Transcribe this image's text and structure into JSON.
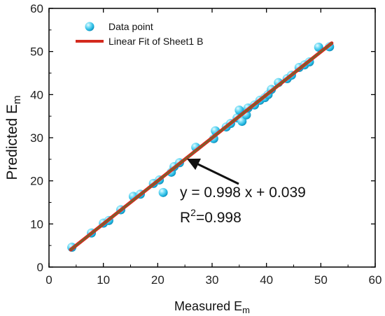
{
  "chart_data": {
    "type": "scatter",
    "xlabel": "Measured E",
    "xlabel_sub": "m",
    "ylabel": "Predicted E",
    "ylabel_sub": "m",
    "xlim": [
      0,
      60
    ],
    "ylim": [
      0,
      60
    ],
    "xticks": [
      0,
      10,
      20,
      30,
      40,
      50,
      60
    ],
    "yticks": [
      0,
      10,
      20,
      30,
      40,
      50,
      60
    ],
    "grid": false,
    "legend_position": "top-left",
    "series": [
      {
        "name": "Data point",
        "kind": "scatter",
        "color": "#2ec4e8",
        "points": [
          [
            4.2,
            4.6
          ],
          [
            7.8,
            7.9
          ],
          [
            10.0,
            10.2
          ],
          [
            11.0,
            10.8
          ],
          [
            13.2,
            13.3
          ],
          [
            15.5,
            16.4
          ],
          [
            16.8,
            16.9
          ],
          [
            19.2,
            19.4
          ],
          [
            20.3,
            20.2
          ],
          [
            21.0,
            17.3
          ],
          [
            22.5,
            22.0
          ],
          [
            23.0,
            23.3
          ],
          [
            24.0,
            24.2
          ],
          [
            27.0,
            27.8
          ],
          [
            30.3,
            29.8
          ],
          [
            30.6,
            31.6
          ],
          [
            32.6,
            32.5
          ],
          [
            33.4,
            33.3
          ],
          [
            34.6,
            34.6
          ],
          [
            35.0,
            36.4
          ],
          [
            35.5,
            33.8
          ],
          [
            36.3,
            35.3
          ],
          [
            36.6,
            36.9
          ],
          [
            37.8,
            37.6
          ],
          [
            38.8,
            38.7
          ],
          [
            39.7,
            39.3
          ],
          [
            40.3,
            40.0
          ],
          [
            40.9,
            41.2
          ],
          [
            42.2,
            42.8
          ],
          [
            43.8,
            43.7
          ],
          [
            44.6,
            44.5
          ],
          [
            46.0,
            46.3
          ],
          [
            47.0,
            46.9
          ],
          [
            47.9,
            47.6
          ],
          [
            49.6,
            51.0
          ],
          [
            51.6,
            51.1
          ]
        ]
      },
      {
        "name": "Linear Fit of Sheet1 B",
        "kind": "line",
        "color": "#d42a1e",
        "slope": 0.998,
        "intercept": 0.039,
        "x_range": [
          4,
          52
        ]
      }
    ],
    "annotation": {
      "equation": "y = 0.998 x + 0.039",
      "r2_label": "R",
      "r2_sup": "2",
      "r2_value": "=0.998",
      "arrow_target": [
        25,
        25.5
      ]
    }
  }
}
